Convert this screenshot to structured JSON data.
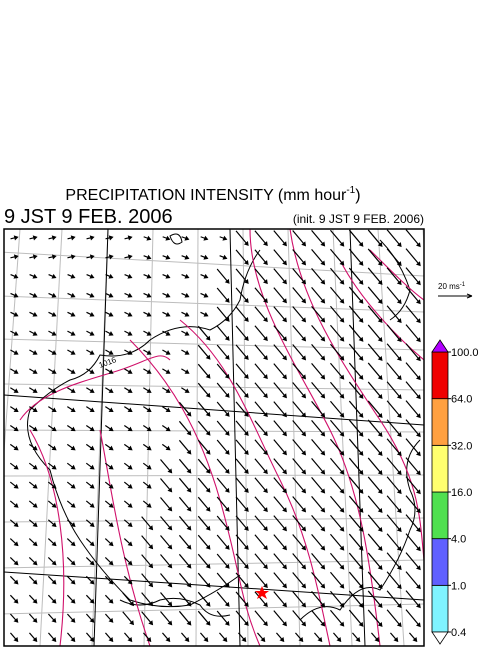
{
  "header": {
    "title": [
      "PRECIPITATION INTENSITY (mm hour",
      "-1",
      ")"
    ],
    "valid_time": "9 JST 9 FEB. 2006",
    "init_time": "(init. 9 JST 9 FEB. 2006)"
  },
  "map": {
    "contour_label": "1016"
  },
  "legend": {
    "scale_label": [
      "20 ms",
      "-1"
    ],
    "colorbar": {
      "colors": [
        "#7ff3ff",
        "#6060ff",
        "#50e050",
        "#ffff6f",
        "#ffa040",
        "#ef0000"
      ],
      "over_color": "#b000ff",
      "under_color": "#ffffff",
      "ticks": [
        {
          "value": 0.4,
          "label": "0.4"
        },
        {
          "value": 1,
          "label": "1.0"
        },
        {
          "value": 4,
          "label": "4.0"
        },
        {
          "value": 16,
          "label": "16.0"
        },
        {
          "value": 32,
          "label": "32.0"
        },
        {
          "value": 64,
          "label": "64.0"
        },
        {
          "value": 100,
          "label": "100.0"
        }
      ]
    }
  }
}
